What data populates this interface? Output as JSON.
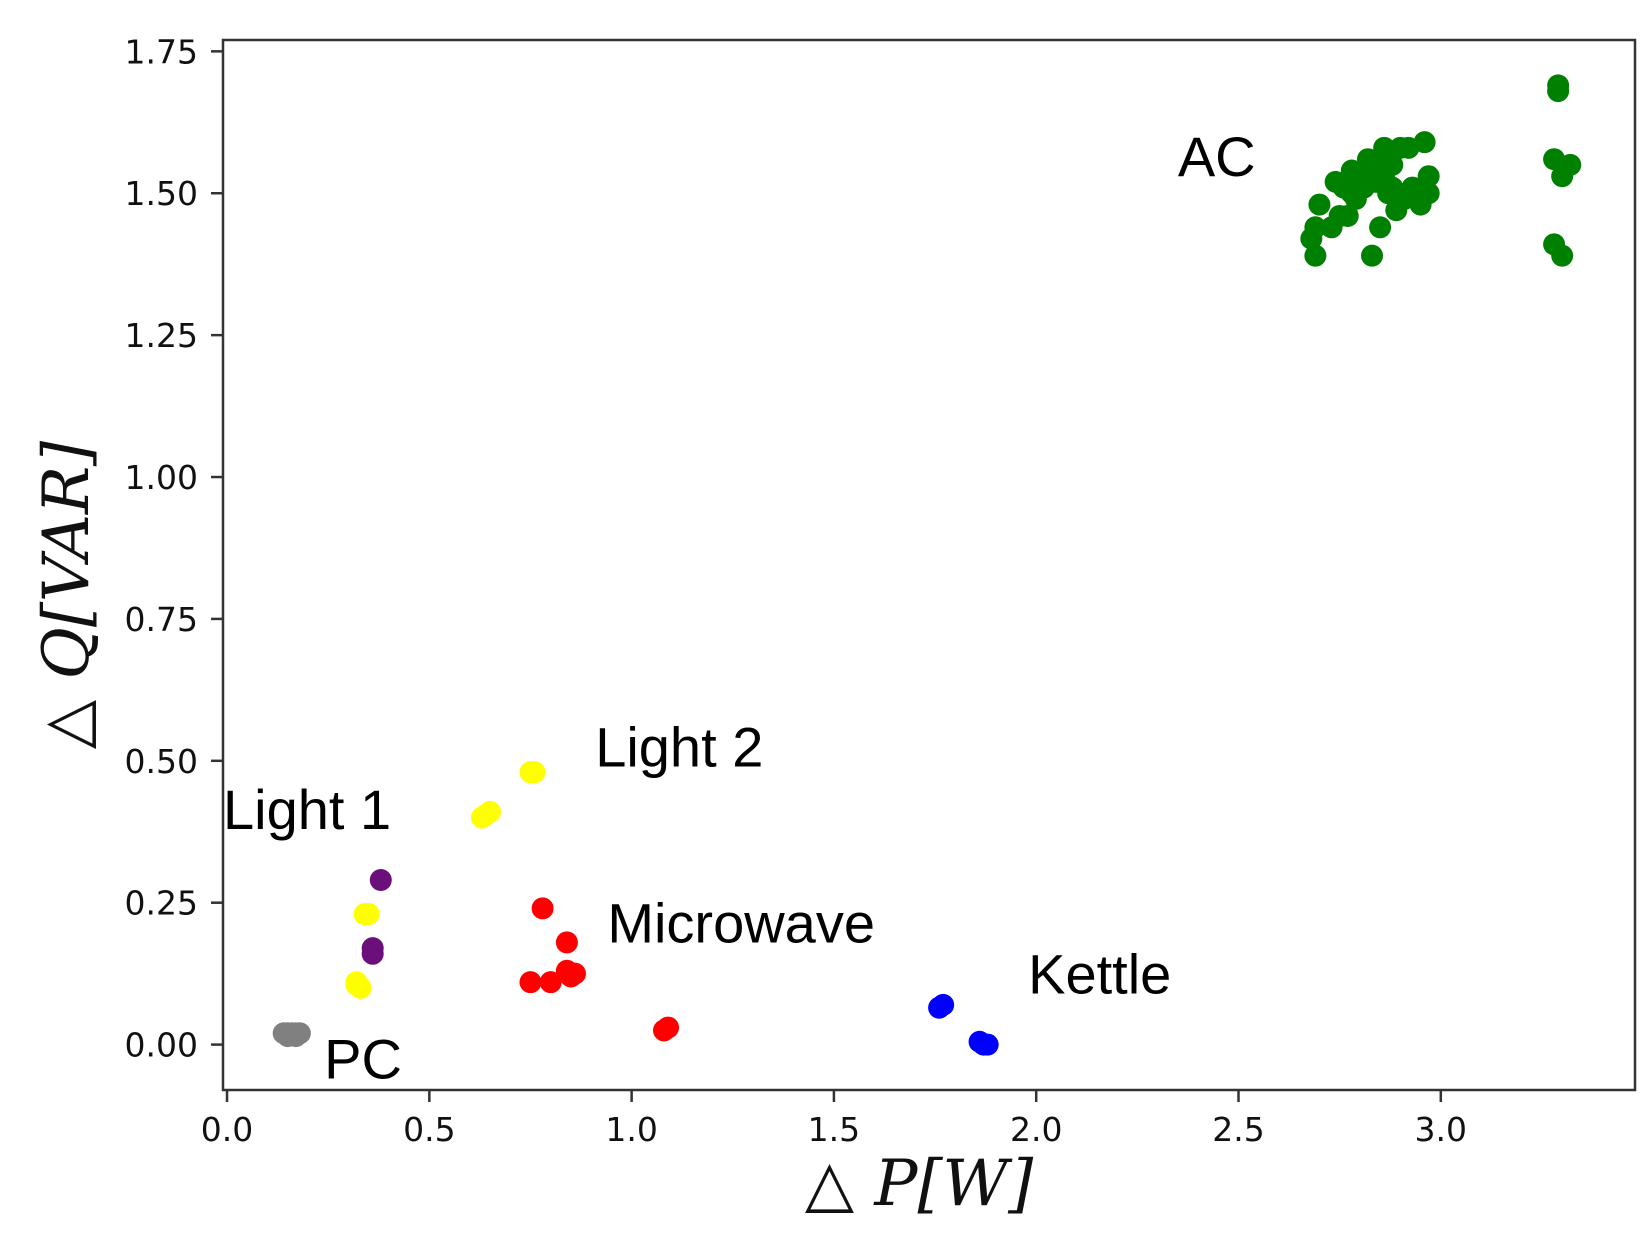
{
  "chart_data": {
    "type": "scatter",
    "title": "",
    "xlabel": "△ P[W]",
    "ylabel": "△ Q[VAR]",
    "xlim": [
      -0.01,
      3.48
    ],
    "ylim": [
      -0.08,
      1.77
    ],
    "xticks": [
      0.0,
      0.5,
      1.0,
      1.5,
      2.0,
      2.5,
      3.0
    ],
    "xtick_labels": [
      "0.0",
      "0.5",
      "1.0",
      "1.5",
      "2.0",
      "2.5",
      "3.0"
    ],
    "yticks": [
      0.0,
      0.25,
      0.5,
      0.75,
      1.0,
      1.25,
      1.5,
      1.75
    ],
    "ytick_labels": [
      "0.00",
      "0.25",
      "0.50",
      "0.75",
      "1.00",
      "1.25",
      "1.50",
      "1.75"
    ],
    "grid": false,
    "series": [
      {
        "name": "PC",
        "color": "#808080",
        "points": [
          [
            0.14,
            0.02
          ],
          [
            0.15,
            0.02
          ],
          [
            0.16,
            0.02
          ],
          [
            0.17,
            0.02
          ],
          [
            0.18,
            0.02
          ],
          [
            0.15,
            0.015
          ],
          [
            0.17,
            0.015
          ]
        ]
      },
      {
        "name": "Light 1",
        "color": "#6b0f7a",
        "points": [
          [
            0.38,
            0.29
          ],
          [
            0.36,
            0.17
          ],
          [
            0.36,
            0.16
          ]
        ]
      },
      {
        "name": "Light 2",
        "color": "#ffff00",
        "points": [
          [
            0.75,
            0.48
          ],
          [
            0.76,
            0.48
          ],
          [
            0.65,
            0.41
          ],
          [
            0.63,
            0.4
          ],
          [
            0.64,
            0.405
          ],
          [
            0.35,
            0.23
          ],
          [
            0.34,
            0.23
          ],
          [
            0.32,
            0.11
          ],
          [
            0.33,
            0.1
          ],
          [
            0.32,
            0.105
          ]
        ]
      },
      {
        "name": "Microwave",
        "color": "#ff0000",
        "points": [
          [
            0.78,
            0.24
          ],
          [
            0.84,
            0.18
          ],
          [
            0.75,
            0.11
          ],
          [
            0.8,
            0.11
          ],
          [
            0.84,
            0.13
          ],
          [
            0.85,
            0.12
          ],
          [
            0.86,
            0.125
          ],
          [
            1.09,
            0.03
          ],
          [
            1.08,
            0.025
          ]
        ]
      },
      {
        "name": "Kettle",
        "color": "#0000ff",
        "points": [
          [
            1.77,
            0.07
          ],
          [
            1.76,
            0.065
          ],
          [
            1.87,
            0.0
          ],
          [
            1.88,
            0.0
          ],
          [
            1.86,
            0.005
          ]
        ]
      },
      {
        "name": "AC",
        "color": "#008000",
        "points": [
          [
            3.29,
            1.69
          ],
          [
            3.29,
            1.68
          ],
          [
            3.28,
            1.56
          ],
          [
            3.32,
            1.55
          ],
          [
            3.3,
            1.53
          ],
          [
            3.28,
            1.41
          ],
          [
            3.3,
            1.39
          ],
          [
            2.69,
            1.39
          ],
          [
            2.83,
            1.39
          ],
          [
            2.68,
            1.42
          ],
          [
            2.69,
            1.44
          ],
          [
            2.73,
            1.44
          ],
          [
            2.7,
            1.48
          ],
          [
            2.75,
            1.46
          ],
          [
            2.77,
            1.46
          ],
          [
            2.85,
            1.44
          ],
          [
            2.78,
            1.5
          ],
          [
            2.8,
            1.52
          ],
          [
            2.82,
            1.53
          ],
          [
            2.84,
            1.55
          ],
          [
            2.86,
            1.58
          ],
          [
            2.9,
            1.58
          ],
          [
            2.92,
            1.58
          ],
          [
            2.96,
            1.59
          ],
          [
            2.83,
            1.54
          ],
          [
            2.85,
            1.52
          ],
          [
            2.87,
            1.5
          ],
          [
            2.89,
            1.47
          ],
          [
            2.91,
            1.49
          ],
          [
            2.93,
            1.51
          ],
          [
            2.95,
            1.48
          ],
          [
            2.97,
            1.5
          ],
          [
            2.97,
            1.53
          ],
          [
            2.76,
            1.51
          ],
          [
            2.79,
            1.49
          ],
          [
            2.81,
            1.51
          ],
          [
            2.84,
            1.52
          ],
          [
            2.86,
            1.53
          ],
          [
            2.88,
            1.51
          ],
          [
            2.74,
            1.52
          ],
          [
            2.78,
            1.54
          ],
          [
            2.82,
            1.56
          ],
          [
            2.88,
            1.55
          ]
        ]
      }
    ],
    "annotations": [
      {
        "text": "AC",
        "x": 2.35,
        "y": 1.53
      },
      {
        "text": "Light 2",
        "x": 0.91,
        "y": 0.49
      },
      {
        "text": "Light 1",
        "x": -0.01,
        "y": 0.38
      },
      {
        "text": "Microwave",
        "x": 0.94,
        "y": 0.18
      },
      {
        "text": "Kettle",
        "x": 1.98,
        "y": 0.09
      },
      {
        "text": "PC",
        "x": 0.24,
        "y": -0.06
      }
    ]
  }
}
